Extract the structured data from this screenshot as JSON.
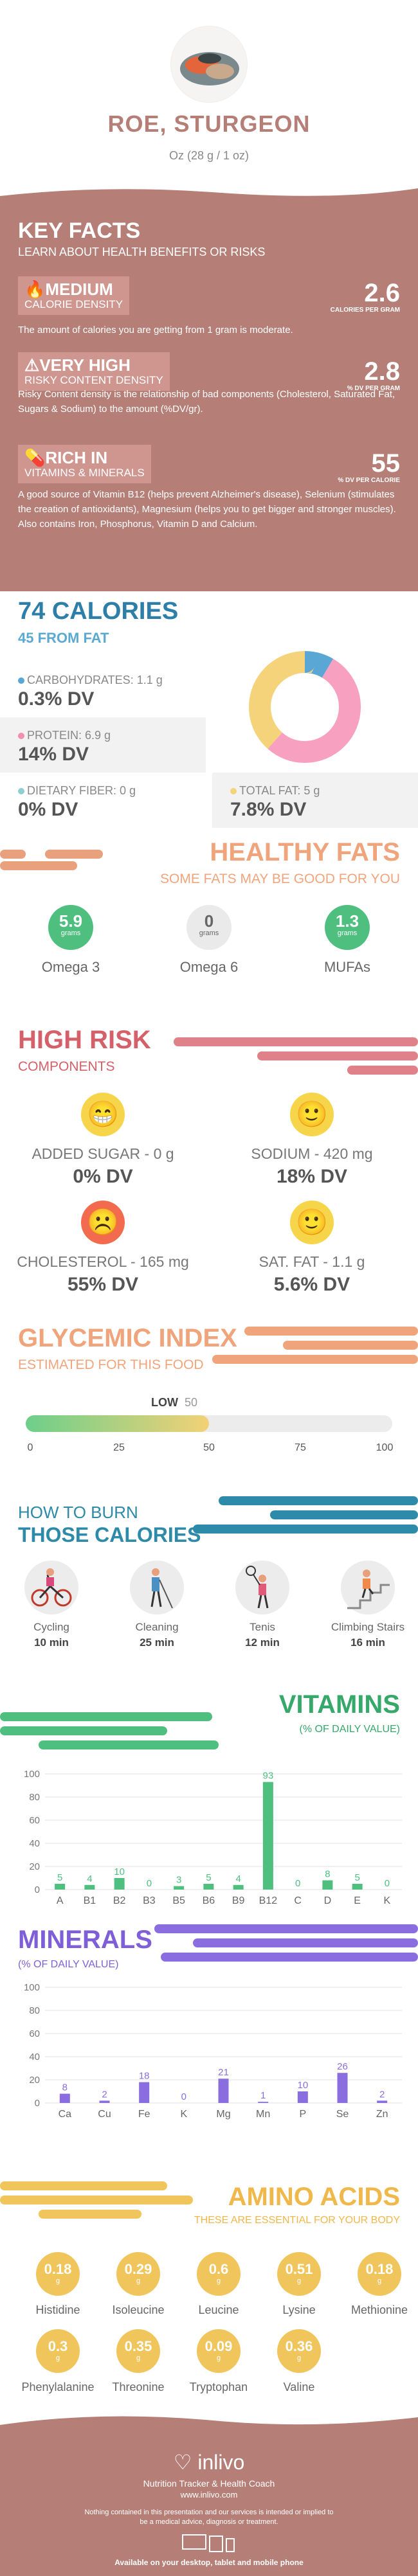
{
  "header": {
    "title": "ROE, STURGEON",
    "serving": "Oz (28 g / 1 oz)"
  },
  "key_facts": {
    "title": "KEY FACTS",
    "subtitle": "LEARN ABOUT HEALTH BENEFITS OR RISKS",
    "items": [
      {
        "level": "MEDIUM",
        "label": "CALORIE DENSITY",
        "value": "2.6",
        "unit": "CALORIES PER GRAM",
        "icon": "flame-icon",
        "desc": "The amount of calories you are getting from 1 gram is moderate."
      },
      {
        "level": "VERY HIGH",
        "label": "RISKY CONTENT DENSITY",
        "value": "2.8",
        "unit": "% DV PER GRAM",
        "icon": "warning-icon",
        "desc": "Risky Content density is the relationship of bad components (Cholesterol, Saturated Fat, Sugars & Sodium) to the amount (%DV/gr)."
      },
      {
        "level": "RICH  IN",
        "label": "VITAMINS & MINERALS",
        "value": "55",
        "unit": "% DV PER CALORIE",
        "icon": "pill-icon",
        "desc": "A good source of Vitamin B12 (helps prevent Alzheimer's disease), Selenium (stimulates the creation of antioxidants), Magnesium (helps you to get bigger and stronger muscles). Also contains Iron, Phosphorus, Vitamin D and Calcium."
      }
    ]
  },
  "calories": {
    "title": "74 CALORIES",
    "subtitle": "45 FROM FAT",
    "nutrients": [
      {
        "label": "CARBOHYDRATES: 1.1 g",
        "dv": "0.3% DV",
        "color": "#5aa7d6"
      },
      {
        "label": "PROTEIN: 6.9 g",
        "dv": "14% DV",
        "color": "#f28fb0"
      },
      {
        "label": "DIETARY FIBER: 0 g",
        "dv": "0% DV",
        "color": "#8fcfcf"
      },
      {
        "label": "TOTAL FAT: 5 g",
        "dv": "7.8% DV",
        "color": "#f5d37a"
      }
    ],
    "donut": [
      {
        "name": "carbohydrates",
        "value": 1.1,
        "color": "#5aa7d6"
      },
      {
        "name": "protein",
        "value": 6.9,
        "color": "#f7a0c0"
      },
      {
        "name": "fat",
        "value": 5,
        "color": "#f5d37a"
      }
    ]
  },
  "healthy_fats": {
    "title": "HEALTHY FATS",
    "subtitle": "SOME FATS MAY BE GOOD FOR YOU",
    "items": [
      {
        "value": "5.9",
        "unit": "grams",
        "name": "Omega 3",
        "color": "#4ebf7e"
      },
      {
        "value": "0",
        "unit": "grams",
        "name": "Omega 6",
        "color": "#eaeaea"
      },
      {
        "value": "1.3",
        "unit": "grams",
        "name": "MUFAs",
        "color": "#4ebf7e"
      }
    ]
  },
  "high_risk": {
    "title": "HIGH RISK",
    "subtitle": "COMPONENTS",
    "items": [
      {
        "label": "ADDED SUGAR - 0 g",
        "dv": "0% DV",
        "face": "😁",
        "bg": "#f7d54a"
      },
      {
        "label": "SODIUM - 420 mg",
        "dv": "18% DV",
        "face": "🙂",
        "bg": "#f7d54a"
      },
      {
        "label": "CHOLESTEROL - 165 mg",
        "dv": "55% DV",
        "face": "☹️",
        "bg": "#f36b4f"
      },
      {
        "label": "SAT. FAT - 1.1 g",
        "dv": "5.6% DV",
        "face": "🙂",
        "bg": "#f7d54a"
      }
    ]
  },
  "glycemic": {
    "title": "GLYCEMIC INDEX",
    "subtitle": "ESTIMATED FOR THIS FOOD",
    "level": "LOW",
    "value": "50",
    "fraction": 0.5,
    "ticks": [
      "0",
      "25",
      "50",
      "75",
      "100"
    ]
  },
  "burn": {
    "title_top": "HOW TO BURN",
    "title_bottom": "THOSE CALORIES",
    "items": [
      {
        "name": "Cycling",
        "time": "10 min",
        "icon": "cycling-icon"
      },
      {
        "name": "Cleaning",
        "time": "25 min",
        "icon": "cleaning-icon"
      },
      {
        "name": "Tenis",
        "time": "12 min",
        "icon": "tennis-icon"
      },
      {
        "name": "Climbing Stairs",
        "time": "16 min",
        "icon": "stairs-icon"
      }
    ]
  },
  "chart_data": [
    {
      "type": "bar",
      "title": "VITAMINS",
      "subtitle": "(% OF DAILY VALUE)",
      "categories": [
        "A",
        "B1",
        "B2",
        "B3",
        "B5",
        "B6",
        "B9",
        "B12",
        "C",
        "D",
        "E",
        "K"
      ],
      "values": [
        5,
        4,
        10,
        0,
        3,
        5,
        4,
        93,
        0,
        8,
        5,
        0
      ],
      "ylim": [
        0,
        100
      ],
      "yticks": [
        "100",
        "80",
        "60",
        "40",
        "20",
        "0"
      ],
      "grid": true,
      "color": "#4ebf7e"
    },
    {
      "type": "bar",
      "title": "MINERALS",
      "subtitle": "(% OF DAILY VALUE)",
      "categories": [
        "Ca",
        "Cu",
        "Fe",
        "K",
        "Mg",
        "Mn",
        "P",
        "Se",
        "Zn"
      ],
      "values": [
        8,
        2,
        18,
        0,
        21,
        1,
        10,
        26,
        2
      ],
      "ylim": [
        0,
        100
      ],
      "yticks": [
        "100",
        "80",
        "60",
        "40",
        "20",
        "0"
      ],
      "grid": true,
      "color": "#8a6ee0"
    }
  ],
  "amino": {
    "title": "AMINO ACIDS",
    "subtitle": "THESE ARE ESSENTIAL FOR YOUR BODY",
    "unit": "g",
    "items": [
      {
        "value": "0.18",
        "name": "Histidine"
      },
      {
        "value": "0.29",
        "name": "Isoleucine"
      },
      {
        "value": "0.6",
        "name": "Leucine"
      },
      {
        "value": "0.51",
        "name": "Lysine"
      },
      {
        "value": "0.18",
        "name": "Methionine"
      },
      {
        "value": "0.3",
        "name": "Phenylalanine"
      },
      {
        "value": "0.35",
        "name": "Threonine"
      },
      {
        "value": "0.09",
        "name": "Tryptophan"
      },
      {
        "value": "0.36",
        "name": "Valine"
      }
    ]
  },
  "footer": {
    "brand": "inlivo",
    "tagline": "Nutrition Tracker & Health Coach",
    "url": "www.inlivo.com",
    "disclaimer": "Nothing contained in this presentation and our services is intended or implied to be a medical advice, diagnosis or treatment.",
    "available": "Available on your desktop, tablet and mobile phone"
  }
}
